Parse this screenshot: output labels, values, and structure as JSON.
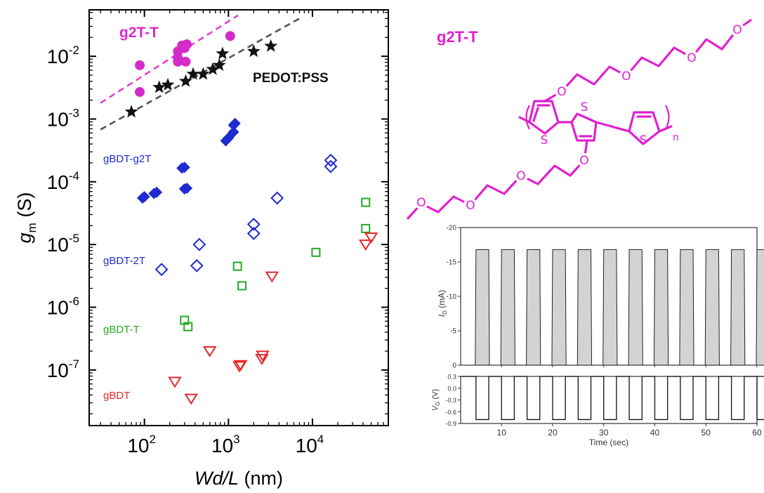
{
  "chart_data": [
    {
      "type": "scatter",
      "xlabel_main": "Wd/L",
      "xlabel_unit": " (nm)",
      "ylabel_main": "g",
      "ylabel_sub": "m",
      "ylabel_unit": " (S)",
      "x_scale": "log",
      "y_scale": "log",
      "xlim": [
        22,
        80000
      ],
      "ylim": [
        1.3e-08,
        0.055
      ],
      "x_ticks": [
        {
          "base": "10",
          "exp": "2",
          "value": 100
        },
        {
          "base": "10",
          "exp": "3",
          "value": 1000
        },
        {
          "base": "10",
          "exp": "4",
          "value": 10000
        }
      ],
      "y_ticks": [
        {
          "base": "10",
          "exp": "-7",
          "value": 1e-07
        },
        {
          "base": "10",
          "exp": "-6",
          "value": 1e-06
        },
        {
          "base": "10",
          "exp": "-5",
          "value": 1e-05
        },
        {
          "base": "10",
          "exp": "-4",
          "value": 0.0001
        },
        {
          "base": "10",
          "exp": "-3",
          "value": 0.001
        },
        {
          "base": "10",
          "exp": "-2",
          "value": 0.01
        }
      ],
      "series": [
        {
          "name": "g2T-T",
          "color": "#d62bc8",
          "marker": "filled-circle",
          "points": [
            [
              88,
              0.0072
            ],
            [
              88,
              0.0027
            ],
            [
              250,
              0.0095
            ],
            [
              250,
              0.0082
            ],
            [
              250,
              0.012
            ],
            [
              280,
              0.0148
            ],
            [
              300,
              0.0135
            ],
            [
              310,
              0.0082
            ],
            [
              320,
              0.0155
            ],
            [
              1050,
              0.021
            ]
          ]
        },
        {
          "name": "PEDOT:PSS",
          "color": "#111111",
          "marker": "star",
          "points": [
            [
              70,
              0.0013
            ],
            [
              150,
              0.0032
            ],
            [
              190,
              0.0035
            ],
            [
              310,
              0.004
            ],
            [
              380,
              0.0052
            ],
            [
              500,
              0.0052
            ],
            [
              650,
              0.0062
            ],
            [
              780,
              0.0072
            ],
            [
              850,
              0.011
            ],
            [
              2000,
              0.012
            ],
            [
              3200,
              0.0145
            ]
          ]
        },
        {
          "name": "gBDT-g2T",
          "color": "#1f2ad0",
          "marker": "filled-diamond",
          "points": [
            [
              95,
              5.5e-05
            ],
            [
              100,
              5.8e-05
            ],
            [
              130,
              6.5e-05
            ],
            [
              140,
              6.8e-05
            ],
            [
              280,
              0.000165
            ],
            [
              300,
              0.00017
            ],
            [
              300,
              7.7e-05
            ],
            [
              320,
              7.9e-05
            ],
            [
              930,
              0.00045
            ],
            [
              1000,
              0.0005
            ],
            [
              1150,
              0.00062
            ],
            [
              1150,
              0.0008
            ],
            [
              1200,
              0.00085
            ]
          ]
        },
        {
          "name": "gBDT-2T",
          "color": "#1f2ad0",
          "marker": "open-diamond",
          "points": [
            [
              160,
              4e-06
            ],
            [
              420,
              4.6e-06
            ],
            [
              450,
              1e-05
            ],
            [
              2000,
              1.5e-05
            ],
            [
              2000,
              2.1e-05
            ],
            [
              3800,
              5.5e-05
            ],
            [
              16500,
              0.000175
            ],
            [
              16500,
              0.00022
            ]
          ]
        },
        {
          "name": "gBDT-T",
          "color": "#22aa22",
          "marker": "open-square",
          "points": [
            [
              300,
              6.2e-07
            ],
            [
              330,
              4.9e-07
            ],
            [
              1280,
              4.5e-06
            ],
            [
              1450,
              2.2e-06
            ],
            [
              11000,
              7.5e-06
            ],
            [
              43000,
              4.7e-05
            ],
            [
              43000,
              1.8e-05
            ]
          ]
        },
        {
          "name": "gBDT",
          "color": "#e8282a",
          "marker": "open-triangle-down",
          "points": [
            [
              230,
              6.5e-08
            ],
            [
              360,
              3.5e-08
            ],
            [
              600,
              2e-07
            ],
            [
              1350,
              1.15e-07
            ],
            [
              1400,
              1.2e-07
            ],
            [
              2500,
              1.5e-07
            ],
            [
              2550,
              1.7e-07
            ],
            [
              3300,
              3.1e-06
            ],
            [
              43000,
              1e-05
            ],
            [
              50000,
              1.3e-05
            ]
          ]
        }
      ],
      "fit_lines": [
        {
          "series": "g2T-T",
          "color": "#e040d8",
          "style": "dashed",
          "from": [
            30,
            0.0018
          ],
          "to": [
            1300,
            0.045
          ]
        },
        {
          "series": "PEDOT:PSS",
          "color": "#555555",
          "style": "dashed",
          "from": [
            30,
            0.00068
          ],
          "to": [
            7000,
            0.04
          ]
        }
      ],
      "annotations": [
        {
          "text": "g2T-T",
          "color": "#d62bc8"
        },
        {
          "text": "PEDOT:PSS",
          "color": "#111111"
        },
        {
          "text": "gBDT-g2T",
          "color": "#1f2ad0"
        },
        {
          "text": "gBDT-2T",
          "color": "#1f2ad0"
        },
        {
          "text": "gBDT-T",
          "color": "#22aa22"
        },
        {
          "text": "gBDT",
          "color": "#e8282a"
        }
      ]
    },
    {
      "type": "line",
      "title": "",
      "ylabel_main": "I",
      "ylabel_sub": "D",
      "ylabel_unit": " (mA)",
      "ylim": [
        0,
        -20
      ],
      "y_ticks": [
        "-20",
        "-15",
        "-10",
        "-5",
        "0"
      ],
      "xlabel": "Time (sec)",
      "xlim": [
        2,
        60
      ],
      "x_ticks": [
        "10",
        "20",
        "30",
        "40",
        "50",
        "60"
      ],
      "pulse_period": 5,
      "pulse_width": 2.5,
      "pulse_first_start": 5,
      "pulse_count": 12,
      "on_level": -16.8,
      "off_level": 0,
      "fill_color": "#d3d3d3"
    },
    {
      "type": "line",
      "ylabel_main": "V",
      "ylabel_sub": "G",
      "ylabel_unit": " (V)",
      "ylim": [
        -0.9,
        0.3
      ],
      "y_ticks": [
        "0.3",
        "0.0",
        "-0.3",
        "-0.6",
        "-0.9"
      ],
      "xlim": [
        2,
        60
      ],
      "high_level": 0.3,
      "low_level": -0.8
    }
  ],
  "structure": {
    "label": "g2T-T",
    "ring_atom": "S",
    "ether_atom": "O",
    "repeat_subscript": "n",
    "color": "#e020d0"
  }
}
